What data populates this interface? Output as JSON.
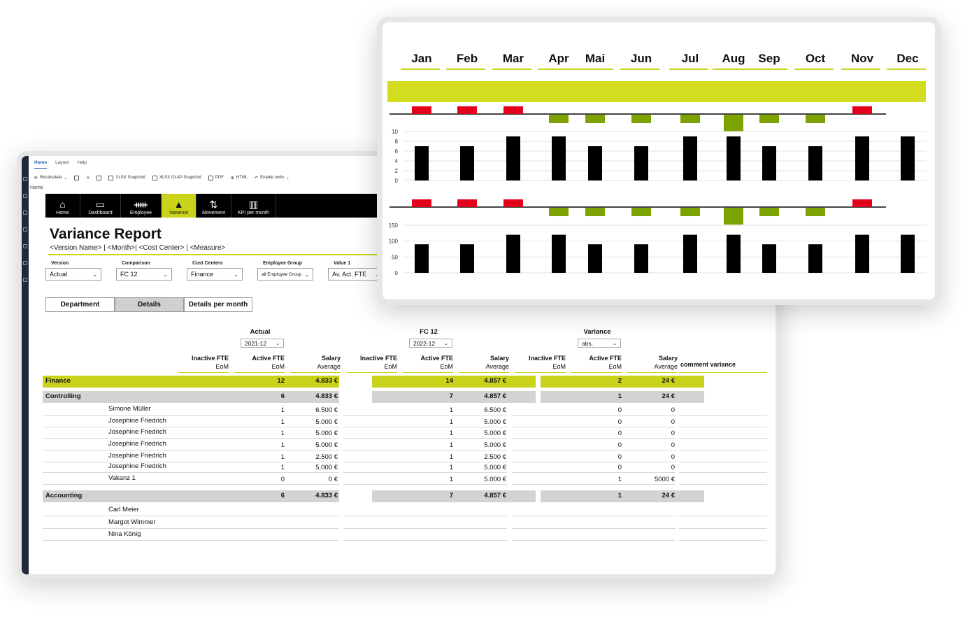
{
  "app": {
    "menu_tabs": [
      "Home",
      "Layout",
      "Help"
    ],
    "toolbar": {
      "recalculate": "Recalculate",
      "xlsx_snapshot": "XLSX Snapshot",
      "xlsx_olap_snapshot": "XLSX OLAP Snapshot",
      "pdf": "PDF",
      "html": "HTML",
      "enable_undo": "Enable undo"
    },
    "breadcrumb": "Home"
  },
  "nav": [
    {
      "label": "Home",
      "icon": "home-icon",
      "active": false
    },
    {
      "label": "Dashboard",
      "icon": "dashboard-icon",
      "active": false
    },
    {
      "label": "Employee",
      "icon": "employee-icon",
      "active": false
    },
    {
      "label": "Variance",
      "icon": "variance-icon",
      "active": true
    },
    {
      "label": "Movement",
      "icon": "movement-icon",
      "active": false
    },
    {
      "label": "KPI per month",
      "icon": "kpi-icon",
      "active": false
    }
  ],
  "report": {
    "title": "Variance Report",
    "subtitle": "<Version Name> | <Month>| <Cost Center> | <Measure>"
  },
  "filters": [
    {
      "label": "Version",
      "value": "Actual"
    },
    {
      "label": "Comparison",
      "value": "FC 12"
    },
    {
      "label": "Cost Centers",
      "value": "Finance"
    },
    {
      "label": "Employee Group",
      "value": "all Employee Group"
    },
    {
      "label": "Value 1",
      "value": "Av. Act. FTE"
    }
  ],
  "tabs": [
    "Department",
    "Details",
    "Details per month"
  ],
  "table": {
    "groups": [
      {
        "title": "Actual",
        "select": "2021-12"
      },
      {
        "title": "FC 12",
        "select": "2022-12"
      },
      {
        "title": "Variance",
        "select": "abs."
      }
    ],
    "col_headers": [
      {
        "top": "Inactive FTE",
        "bottom": "EoM"
      },
      {
        "top": "Active FTE",
        "bottom": "EoM"
      },
      {
        "top": "Salary",
        "bottom": "Average"
      }
    ],
    "comment_header": "comment variance",
    "rows": [
      {
        "label": "Finance",
        "kind": "lime",
        "a": [
          "",
          "12",
          "4.833 €"
        ],
        "f": [
          "",
          "14",
          "4.857 €"
        ],
        "v": [
          "",
          "2",
          "24 €"
        ]
      },
      {
        "label": "Controlling",
        "kind": "gray",
        "a": [
          "",
          "6",
          "4.833 €"
        ],
        "f": [
          "",
          "7",
          "4.857 €"
        ],
        "v": [
          "",
          "1",
          "24 €"
        ]
      },
      {
        "label": "Simone Müller",
        "kind": "person",
        "a": [
          "",
          "1",
          "6.500 €"
        ],
        "f": [
          "",
          "1",
          "6.500 €"
        ],
        "v": [
          "",
          "0",
          "0"
        ]
      },
      {
        "label": "Josephine Friedrich",
        "kind": "person",
        "a": [
          "",
          "1",
          "5.000 €"
        ],
        "f": [
          "",
          "1",
          "5.000 €"
        ],
        "v": [
          "",
          "0",
          "0"
        ]
      },
      {
        "label": "Josephine Friedrich",
        "kind": "person",
        "a": [
          "",
          "1",
          "5.000 €"
        ],
        "f": [
          "",
          "1",
          "5.000 €"
        ],
        "v": [
          "",
          "0",
          "0"
        ]
      },
      {
        "label": "Josephine Friedrich",
        "kind": "person",
        "a": [
          "",
          "1",
          "5.000 €"
        ],
        "f": [
          "",
          "1",
          "5.000 €"
        ],
        "v": [
          "",
          "0",
          "0"
        ]
      },
      {
        "label": "Josephine Friedrich",
        "kind": "person",
        "a": [
          "",
          "1",
          "2.500 €"
        ],
        "f": [
          "",
          "1",
          "2.500 €"
        ],
        "v": [
          "",
          "0",
          "0"
        ]
      },
      {
        "label": "Josephine Friedrich",
        "kind": "person",
        "a": [
          "",
          "1",
          "5.000 €"
        ],
        "f": [
          "",
          "1",
          "5.000 €"
        ],
        "v": [
          "",
          "0",
          "0"
        ]
      },
      {
        "label": "Vakanz 1",
        "kind": "person",
        "a": [
          "",
          "0",
          "0 €"
        ],
        "f": [
          "",
          "1",
          "5.000 €"
        ],
        "v": [
          "",
          "1",
          "5000 €"
        ]
      },
      {
        "label": "Accounting",
        "kind": "gray",
        "a": [
          "",
          "6",
          "4.833 €"
        ],
        "f": [
          "",
          "7",
          "4.857 €"
        ],
        "v": [
          "",
          "1",
          "24 €"
        ]
      },
      {
        "label": "Carl Meier",
        "kind": "person",
        "a": [
          "",
          "",
          ""
        ],
        "f": [
          "",
          "",
          ""
        ],
        "v": [
          "",
          "",
          ""
        ]
      },
      {
        "label": "Margot Wimmer",
        "kind": "person",
        "a": [
          "",
          "",
          ""
        ],
        "f": [
          "",
          "",
          ""
        ],
        "v": [
          "",
          "",
          ""
        ]
      },
      {
        "label": "Nina König",
        "kind": "person",
        "a": [
          "",
          "",
          ""
        ],
        "f": [
          "",
          "",
          ""
        ],
        "v": [
          "",
          "",
          ""
        ]
      }
    ]
  },
  "colors": {
    "accent": "#c8d319",
    "neg": "#e3001b",
    "pos": "#7ea300",
    "bar": "#000000"
  },
  "chart_data": [
    {
      "type": "bar",
      "categories": [
        "Jan",
        "Feb",
        "Mar",
        "Apr",
        "Mai",
        "Jun",
        "Jul",
        "Aug",
        "Sep",
        "Oct",
        "Nov",
        "Dec"
      ],
      "values": [
        7,
        7,
        9,
        9,
        7,
        7,
        9,
        9,
        7,
        7,
        9,
        9
      ],
      "variance": [
        -1,
        -1,
        -1,
        1,
        1,
        1,
        1,
        2,
        1,
        1,
        -1,
        null
      ],
      "ylim": [
        0,
        10
      ],
      "yticks": [
        0,
        2,
        4,
        6,
        8,
        10
      ]
    },
    {
      "type": "bar",
      "categories": [
        "Jan",
        "Feb",
        "Mar",
        "Apr",
        "Mai",
        "Jun",
        "Jul",
        "Aug",
        "Sep",
        "Oct",
        "Nov",
        "Dec"
      ],
      "values": [
        90,
        90,
        120,
        120,
        90,
        90,
        120,
        120,
        90,
        90,
        120,
        120
      ],
      "variance": [
        -1,
        -1,
        -1,
        1,
        1,
        1,
        1,
        2,
        1,
        1,
        -1,
        null
      ],
      "ylim": [
        0,
        150
      ],
      "yticks": [
        0,
        50,
        100,
        150
      ]
    }
  ]
}
